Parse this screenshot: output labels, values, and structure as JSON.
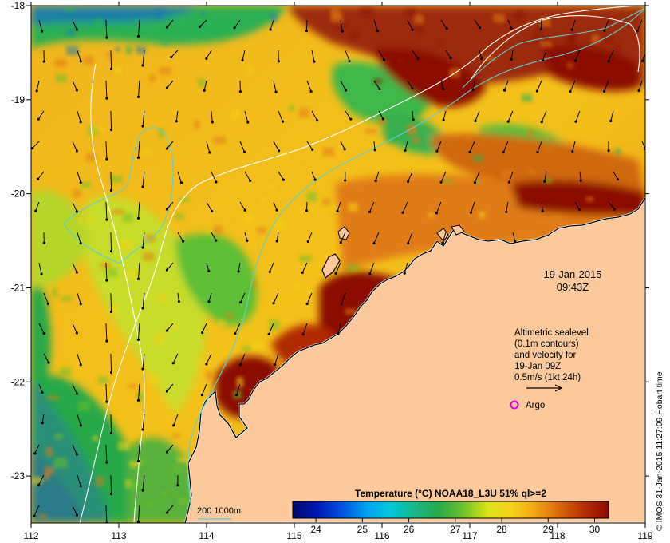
{
  "map": {
    "lon_ticks": [
      "112",
      "113",
      "114",
      "115",
      "116",
      "117",
      "118",
      "119"
    ],
    "lat_ticks": [
      "-18",
      "-19",
      "-20",
      "-21",
      "-22",
      "-23"
    ],
    "lon_range": [
      112,
      119
    ],
    "lat_range": [
      -18,
      -23.5
    ],
    "colors": {
      "land": "#fbc99b",
      "deep_water": "#0a2fb0",
      "cool_water": "#1fa23a",
      "warm_water": "#f2b81c",
      "hot_water": "#8c0d00",
      "bathy_200": "#5ad2d2",
      "bathy_1000": "#ffffff",
      "argo": "#e600e6"
    }
  },
  "overlay": {
    "date": "19-Jan-2015",
    "time": "09:43Z",
    "legend_lines": [
      "Altimetric sealevel",
      "(0.1m contours)",
      "and velocity for",
      "19-Jan 09Z",
      "0.5m/s (1kt 24h)"
    ],
    "argo_label": "Argo",
    "bathy_label": "200  1000m",
    "credit": "© IMOS 31-Jan-2015 11:27:09 Hobart time"
  },
  "colorbar": {
    "title": "Temperature (°C) NOAA18_L3U 51% ql>=2",
    "range": [
      23.5,
      30.3
    ],
    "ticks": [
      "24",
      "25",
      "26",
      "27",
      "28",
      "29",
      "30"
    ],
    "stops": [
      "#000a64",
      "#0018b0",
      "#0050e0",
      "#00a0f0",
      "#00c8d8",
      "#18b888",
      "#28a84a",
      "#6cc02c",
      "#d8e418",
      "#f4d21a",
      "#f2a416",
      "#d8660a",
      "#b82e04",
      "#8c0800"
    ]
  }
}
